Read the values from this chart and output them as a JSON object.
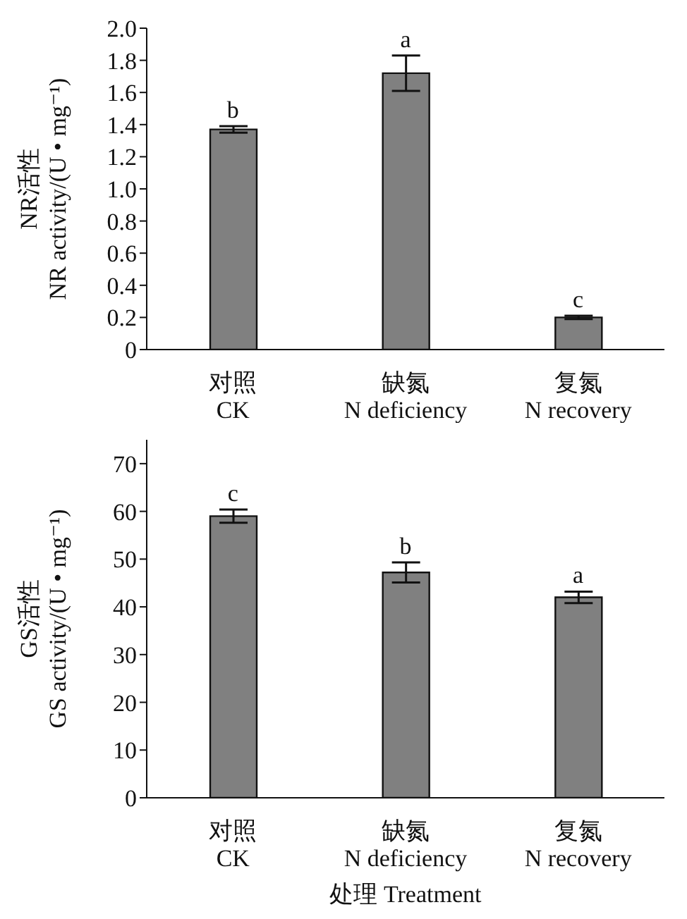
{
  "chart_data": [
    {
      "type": "bar",
      "ylabel": "NR活性\nNR activity/(U • mg⁻¹)",
      "categories": [
        "对照\nCK",
        "缺氮\nN deficiency",
        "复氮\nN recovery"
      ],
      "values": [
        1.37,
        1.72,
        0.2
      ],
      "errors": [
        0.02,
        0.11,
        0.01
      ],
      "color": "#808080",
      "ylim": [
        0,
        2
      ],
      "yticks": [
        0,
        0.2,
        0.4,
        0.6,
        0.8,
        {
          "value": 1,
          "label": "1.0"
        },
        1.2,
        1.4,
        1.6,
        1.8,
        {
          "value": 2,
          "label": "2.0"
        }
      ],
      "grid": false,
      "legend": false,
      "annotations": [
        {
          "text": "b",
          "x": "对照\nCK",
          "y": 1.39
        },
        {
          "text": "a",
          "x": "缺氮\nN deficiency",
          "y": 1.83
        },
        {
          "text": "c",
          "x": "复氮\nN recovery",
          "y": 0.21
        }
      ]
    },
    {
      "type": "bar",
      "ylabel": "GS活性\nGS activity/(U • mg⁻¹)",
      "xlabel": "处理 Treatment",
      "categories": [
        "对照\nCK",
        "缺氮\nN deficiency",
        "复氮\nN recovery"
      ],
      "values": [
        59,
        47.2,
        42
      ],
      "errors": [
        1.4,
        2.1,
        1.2
      ],
      "color": "#808080",
      "ylim": [
        0,
        75
      ],
      "yticks": [
        0,
        10,
        20,
        30,
        40,
        50,
        60,
        70
      ],
      "grid": false,
      "legend": false,
      "annotations": [
        {
          "text": "c",
          "x": "对照\nCK",
          "y": 60.4
        },
        {
          "text": "b",
          "x": "缺氮\nN deficiency",
          "y": 49.3
        },
        {
          "text": "a",
          "x": "复氮\nN recovery",
          "y": 43.2
        }
      ]
    }
  ]
}
